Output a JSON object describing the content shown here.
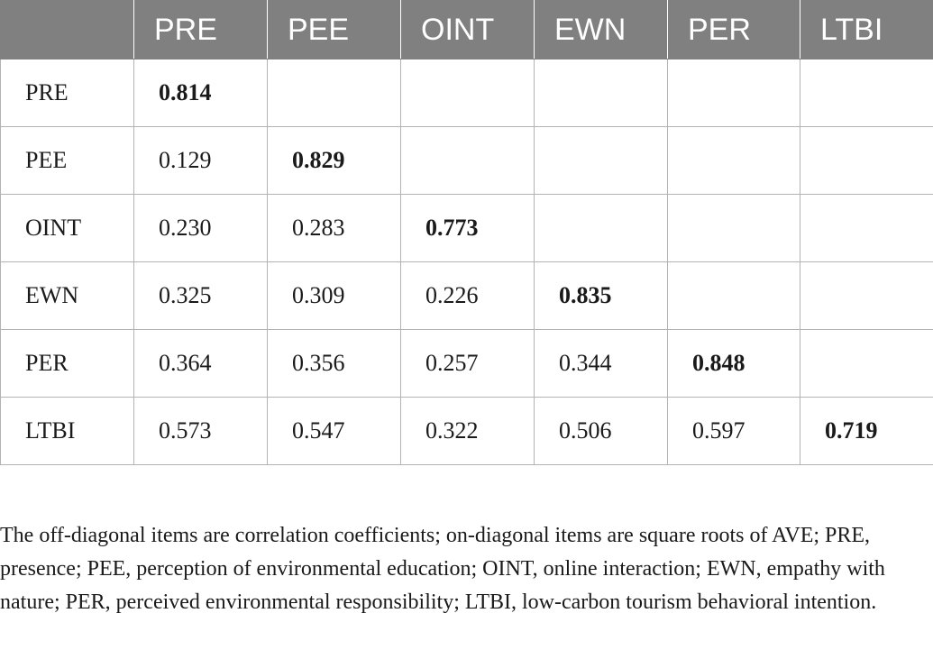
{
  "table": {
    "header": [
      "",
      "PRE",
      "PEE",
      "OINT",
      "EWN",
      "PER",
      "LTBI"
    ],
    "rows": [
      {
        "label": "PRE",
        "cells": [
          "0.814",
          "",
          "",
          "",
          "",
          ""
        ]
      },
      {
        "label": "PEE",
        "cells": [
          "0.129",
          "0.829",
          "",
          "",
          "",
          ""
        ]
      },
      {
        "label": "OINT",
        "cells": [
          "0.230",
          "0.283",
          "0.773",
          "",
          "",
          ""
        ]
      },
      {
        "label": "EWN",
        "cells": [
          "0.325",
          "0.309",
          "0.226",
          "0.835",
          "",
          ""
        ]
      },
      {
        "label": "PER",
        "cells": [
          "0.364",
          "0.356",
          "0.257",
          "0.344",
          "0.848",
          ""
        ]
      },
      {
        "label": "LTBI",
        "cells": [
          "0.573",
          "0.547",
          "0.322",
          "0.506",
          "0.597",
          "0.719"
        ]
      }
    ]
  },
  "colors": {
    "header_background": "#808080",
    "header_text": "#ffffff",
    "grid_line": "#b3b3b3",
    "body_text": "#1a1a1a"
  },
  "footnote": "The off-diagonal items are correlation coefficients; on-diagonal items are square roots of AVE; PRE, presence; PEE, perception of environmental education; OINT, online interaction; EWN, empathy with nature; PER, perceived environmental responsibility; LTBI, low-carbon tourism behavioral intention."
}
